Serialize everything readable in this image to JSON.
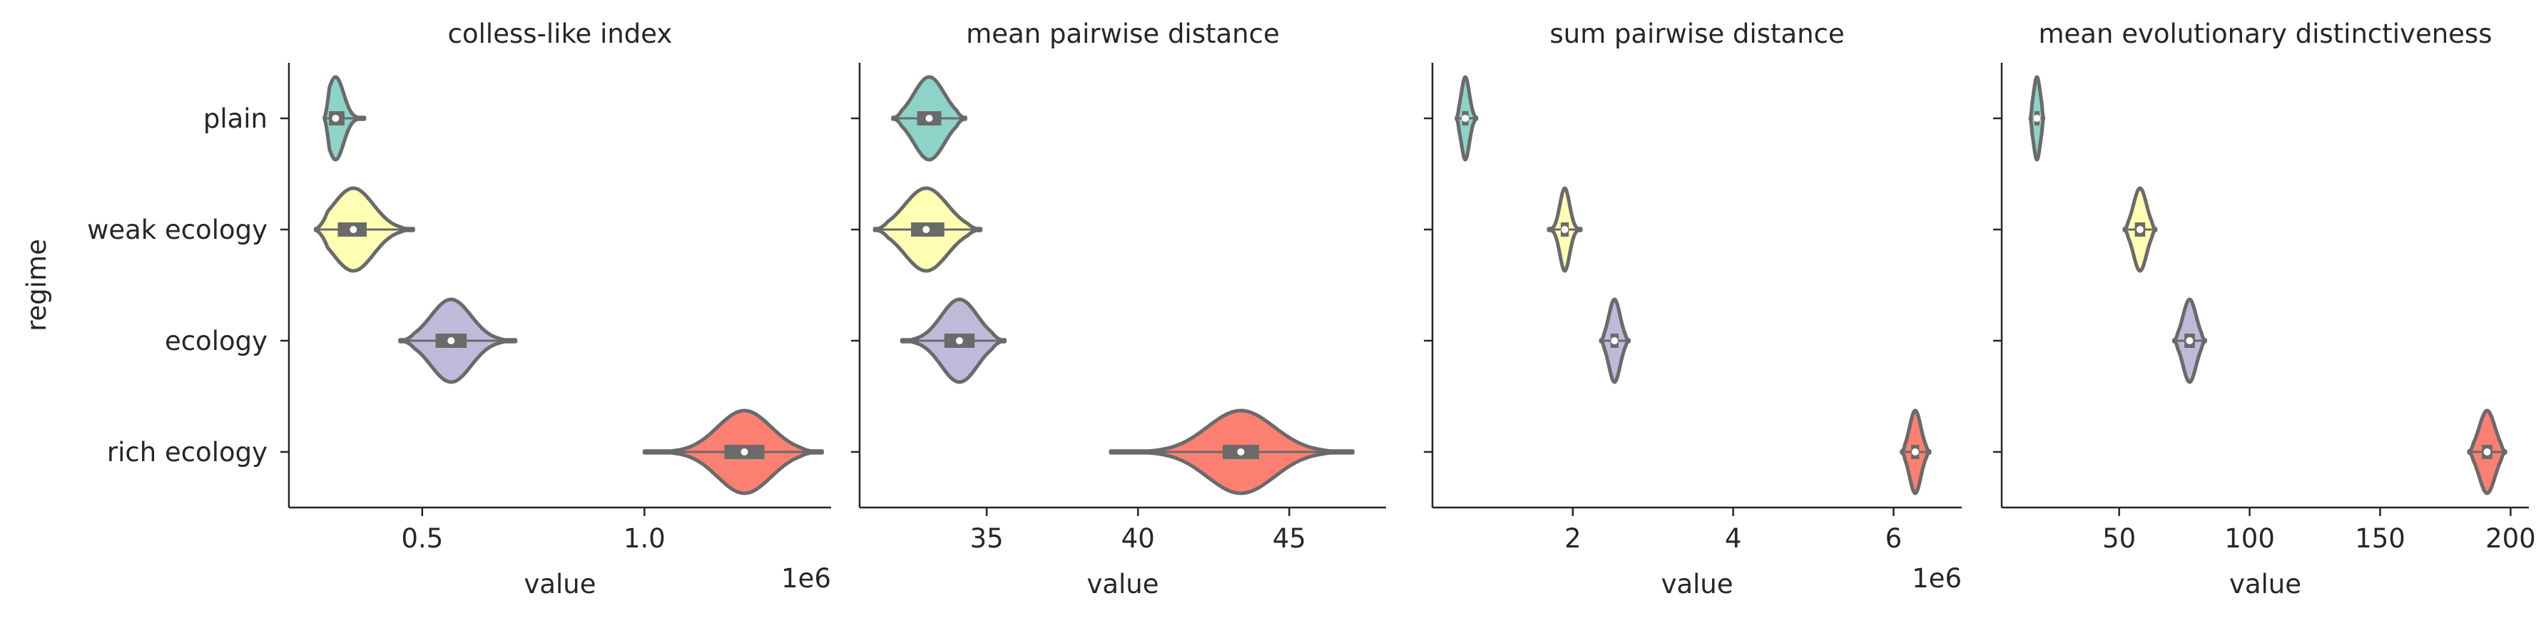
{
  "chart_data": {
    "type": "violin",
    "ylabel": "regime",
    "categories": [
      "plain",
      "weak ecology",
      "ecology",
      "rich ecology"
    ],
    "colors": [
      "#8dd3c7",
      "#ffffb3",
      "#bebada",
      "#fb8072"
    ],
    "outline_color": "#6a6a6a",
    "grid": false,
    "panels": [
      {
        "title": "colless-like index",
        "xlabel": "value",
        "offset_text": "1e6",
        "xlim": [
          0.2,
          1.42
        ],
        "xticks": [
          0.5,
          1.0
        ],
        "xtick_labels": [
          "0.5",
          "1.0"
        ],
        "violins": [
          {
            "category": "plain",
            "min": 0.28,
            "q1": 0.29,
            "median": 0.305,
            "q3": 0.325,
            "max": 0.37,
            "spread": 0.018
          },
          {
            "category": "weak ecology",
            "min": 0.26,
            "q1": 0.31,
            "median": 0.345,
            "q3": 0.375,
            "max": 0.48,
            "spread": 0.045
          },
          {
            "category": "ecology",
            "min": 0.45,
            "q1": 0.53,
            "median": 0.565,
            "q3": 0.6,
            "max": 0.71,
            "spread": 0.045
          },
          {
            "category": "rich ecology",
            "min": 1.0,
            "q1": 1.18,
            "median": 1.225,
            "q3": 1.27,
            "max": 1.4,
            "spread": 0.06
          }
        ]
      },
      {
        "title": "mean pairwise distance",
        "xlabel": "value",
        "offset_text": "",
        "xlim": [
          30.8,
          48.2
        ],
        "xticks": [
          35,
          40,
          45
        ],
        "xtick_labels": [
          "35",
          "40",
          "45"
        ],
        "violins": [
          {
            "category": "plain",
            "min": 31.9,
            "q1": 32.7,
            "median": 33.1,
            "q3": 33.5,
            "max": 34.3,
            "spread": 0.5
          },
          {
            "category": "weak ecology",
            "min": 31.3,
            "q1": 32.5,
            "median": 33.0,
            "q3": 33.6,
            "max": 34.8,
            "spread": 0.7
          },
          {
            "category": "ecology",
            "min": 32.2,
            "q1": 33.6,
            "median": 34.1,
            "q3": 34.6,
            "max": 35.6,
            "spread": 0.6
          },
          {
            "category": "rich ecology",
            "min": 39.1,
            "q1": 42.8,
            "median": 43.4,
            "q3": 44.0,
            "max": 47.1,
            "spread": 1.1
          }
        ]
      },
      {
        "title": "sum pairwise distance",
        "xlabel": "value",
        "offset_text": "1e6",
        "xlim": [
          0.25,
          6.85
        ],
        "xticks": [
          2,
          4,
          6
        ],
        "xtick_labels": [
          "2",
          "4",
          "6"
        ],
        "violins": [
          {
            "category": "plain",
            "min": 0.55,
            "q1": 0.62,
            "median": 0.66,
            "q3": 0.7,
            "max": 0.8,
            "spread": 0.05
          },
          {
            "category": "weak ecology",
            "min": 1.7,
            "q1": 1.85,
            "median": 1.9,
            "q3": 1.95,
            "max": 2.1,
            "spread": 0.06
          },
          {
            "category": "ecology",
            "min": 2.35,
            "q1": 2.47,
            "median": 2.52,
            "q3": 2.57,
            "max": 2.7,
            "spread": 0.07
          },
          {
            "category": "rich ecology",
            "min": 6.1,
            "q1": 6.22,
            "median": 6.27,
            "q3": 6.32,
            "max": 6.45,
            "spread": 0.07
          }
        ]
      },
      {
        "title": "mean evolutionary distinctiveness",
        "xlabel": "value",
        "offset_text": "",
        "xlim": [
          5,
          207
        ],
        "xticks": [
          50,
          100,
          150,
          200
        ],
        "xtick_labels": [
          "50",
          "100",
          "150",
          "200"
        ],
        "violins": [
          {
            "category": "plain",
            "min": 16,
            "q1": 17.5,
            "median": 18.5,
            "q3": 19.5,
            "max": 21,
            "spread": 1.3
          },
          {
            "category": "weak ecology",
            "min": 52,
            "q1": 56,
            "median": 58,
            "q3": 60,
            "max": 64,
            "spread": 2.5
          },
          {
            "category": "ecology",
            "min": 71,
            "q1": 75,
            "median": 77,
            "q3": 79,
            "max": 83,
            "spread": 2.5
          },
          {
            "category": "rich ecology",
            "min": 184,
            "q1": 189,
            "median": 191,
            "q3": 193,
            "max": 198,
            "spread": 3.0
          }
        ]
      }
    ]
  }
}
